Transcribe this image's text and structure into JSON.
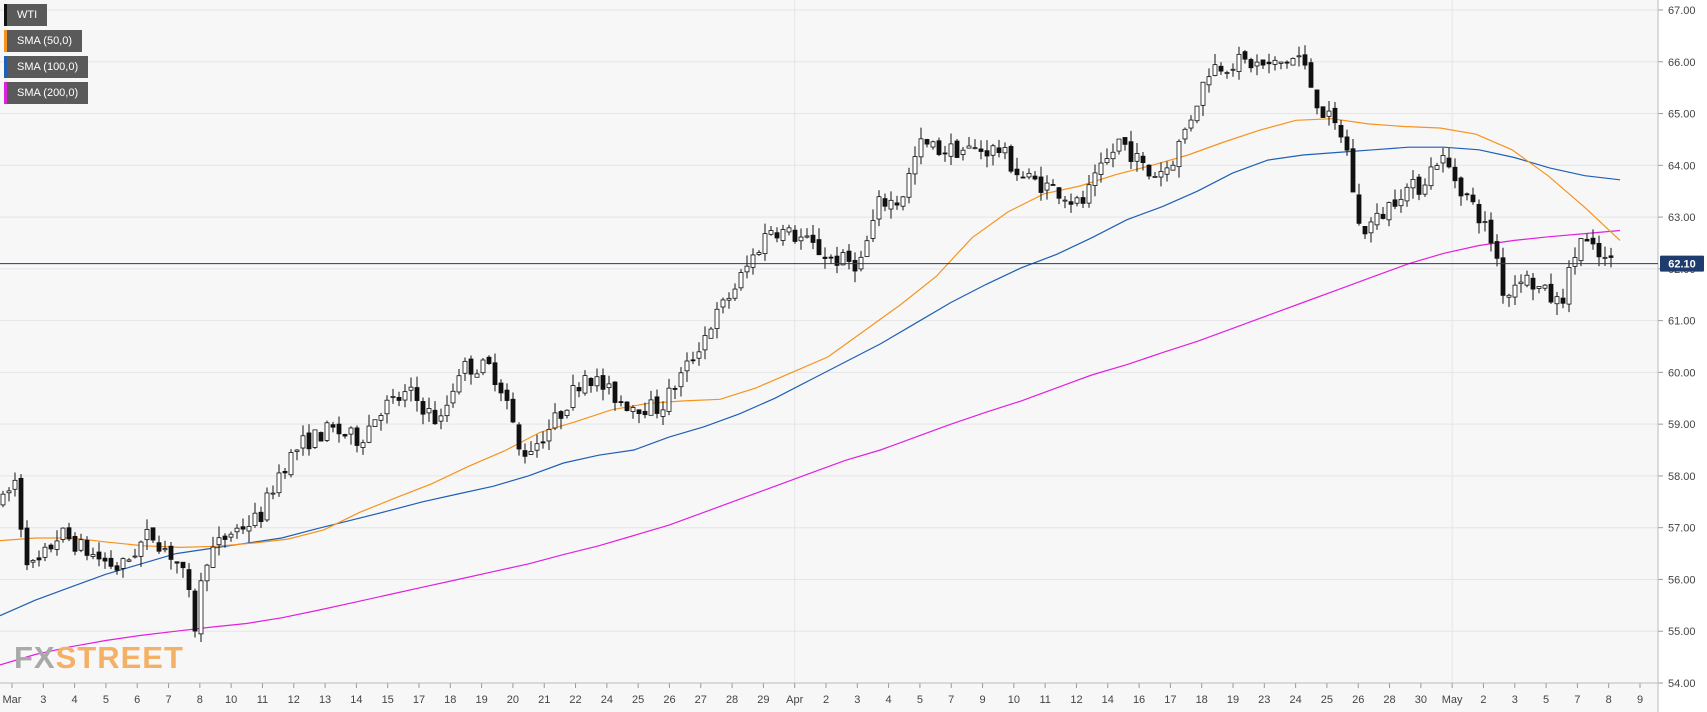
{
  "symbol": "WTI",
  "indicators": [
    {
      "label": "SMA (50,0)",
      "color": "#f7931e"
    },
    {
      "label": "SMA (100,0)",
      "color": "#1f5fb4"
    },
    {
      "label": "SMA (200,0)",
      "color": "#e020e0"
    }
  ],
  "last_price_label": "62.10",
  "watermark": {
    "part1": "FX",
    "part2": "STREET"
  },
  "colors": {
    "up_candle": "#ffffff",
    "down_candle": "#111111",
    "price_line": "#1f3c6e",
    "grid": "#e6e6e6",
    "background": "#f7f7f7"
  },
  "chart_data": {
    "type": "candlestick",
    "yaxis": {
      "min": 54.0,
      "max": 67.0,
      "ticks": [
        "54.00",
        "55.00",
        "56.00",
        "57.00",
        "58.00",
        "59.00",
        "60.00",
        "61.00",
        "62.00",
        "63.00",
        "64.00",
        "65.00",
        "66.00",
        "67.00"
      ],
      "side": "right"
    },
    "xaxis_ticks": [
      "Mar",
      "3",
      "4",
      "5",
      "6",
      "7",
      "8",
      "10",
      "11",
      "12",
      "13",
      "14",
      "15",
      "17",
      "18",
      "19",
      "20",
      "21",
      "22",
      "24",
      "25",
      "26",
      "27",
      "28",
      "29",
      "Apr",
      "2",
      "3",
      "4",
      "5",
      "7",
      "9",
      "10",
      "11",
      "12",
      "14",
      "16",
      "17",
      "18",
      "19",
      "23",
      "24",
      "25",
      "26",
      "28",
      "30",
      "May",
      "2",
      "3",
      "5",
      "7",
      "8",
      "9"
    ],
    "last_price": 62.1,
    "grid": true,
    "sma50": [
      56.75,
      56.8,
      56.8,
      56.72,
      56.65,
      56.62,
      56.64,
      56.7,
      56.78,
      56.96,
      57.3,
      57.58,
      57.85,
      58.18,
      58.48,
      58.84,
      59.05,
      59.28,
      59.4,
      59.45,
      59.48,
      59.7,
      60.0,
      60.3,
      60.8,
      61.3,
      61.85,
      62.6,
      63.1,
      63.45,
      63.6,
      63.82,
      64.0,
      64.2,
      64.45,
      64.68,
      64.87,
      64.9,
      64.8,
      64.75,
      64.72,
      64.6,
      64.3,
      63.8,
      63.2,
      62.55
    ],
    "sma100": [
      55.3,
      55.6,
      55.85,
      56.1,
      56.3,
      56.5,
      56.6,
      56.7,
      56.8,
      56.98,
      57.15,
      57.32,
      57.5,
      57.65,
      57.8,
      58.0,
      58.25,
      58.4,
      58.5,
      58.75,
      58.95,
      59.2,
      59.5,
      59.85,
      60.2,
      60.55,
      60.95,
      61.35,
      61.7,
      62.02,
      62.28,
      62.6,
      62.95,
      63.2,
      63.5,
      63.85,
      64.1,
      64.2,
      64.25,
      64.3,
      64.35,
      64.35,
      64.3,
      64.15,
      63.95,
      63.8,
      63.72
    ],
    "sma200": [
      54.35,
      54.55,
      54.7,
      54.82,
      54.92,
      55.0,
      55.08,
      55.15,
      55.26,
      55.4,
      55.55,
      55.7,
      55.85,
      56.0,
      56.15,
      56.3,
      56.48,
      56.65,
      56.85,
      57.05,
      57.3,
      57.55,
      57.8,
      58.05,
      58.3,
      58.5,
      58.75,
      59.0,
      59.23,
      59.45,
      59.7,
      59.95,
      60.15,
      60.38,
      60.6,
      60.85,
      61.1,
      61.35,
      61.6,
      61.85,
      62.1,
      62.3,
      62.45,
      62.55,
      62.62,
      62.68,
      62.74
    ]
  }
}
